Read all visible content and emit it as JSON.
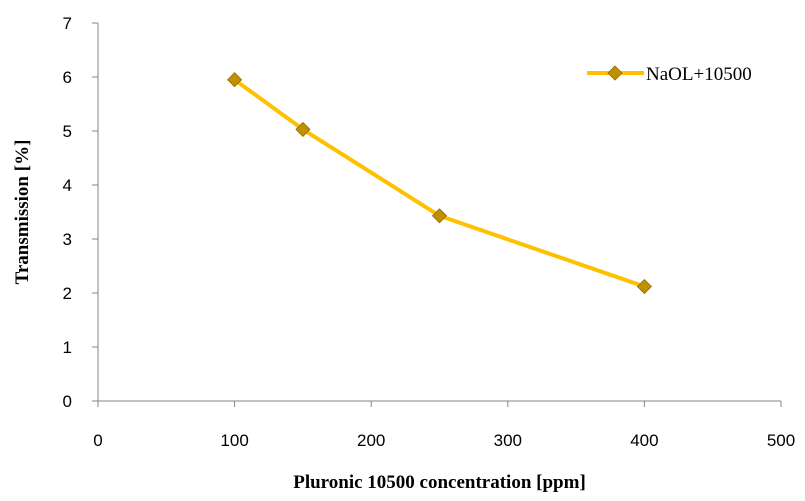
{
  "chart_data": {
    "type": "line",
    "title": "",
    "xlabel": "Pluronic 10500 concentration [ppm]",
    "ylabel": "Transmission [%]",
    "xlim": [
      0,
      500
    ],
    "ylim": [
      0,
      7
    ],
    "xticks": [
      "0",
      "100",
      "200",
      "300",
      "400",
      "500"
    ],
    "yticks": [
      "0",
      "1",
      "2",
      "3",
      "4",
      "5",
      "6",
      "7"
    ],
    "grid": false,
    "legend_position": "top-right",
    "series": [
      {
        "name": "NaOL+10500",
        "color": "#FFC000",
        "marker_color": "#BF9000",
        "marker": "diamond",
        "x": [
          100,
          150,
          250,
          400
        ],
        "y": [
          5.95,
          5.03,
          3.43,
          2.12
        ]
      }
    ]
  }
}
